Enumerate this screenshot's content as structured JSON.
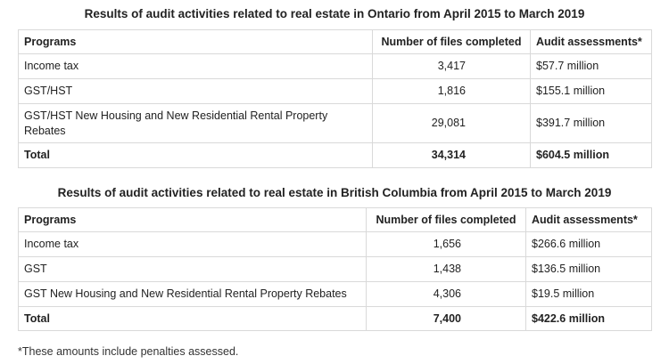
{
  "ontario": {
    "title": "Results of audit activities related to real estate in Ontario from April 2015 to March 2019",
    "headers": [
      "Programs",
      "Number of files completed",
      "Audit assessments*"
    ],
    "rows": [
      [
        "Income tax",
        "3,417",
        "$57.7 million"
      ],
      [
        "GST/HST",
        "1,816",
        "$155.1 million"
      ],
      [
        "GST/HST New Housing and New Residential Rental Property Rebates",
        "29,081",
        "$391.7 million"
      ]
    ],
    "total": [
      "Total",
      "34,314",
      "$604.5 million"
    ]
  },
  "bc": {
    "title": "Results of audit activities related to real estate in British Columbia from April 2015 to March 2019",
    "headers": [
      "Programs",
      "Number of files completed",
      "Audit assessments*"
    ],
    "rows": [
      [
        "Income tax",
        "1,656",
        "$266.6 million"
      ],
      [
        "GST",
        "1,438",
        "$136.5 million"
      ],
      [
        "GST New Housing and New Residential Rental Property Rebates",
        "4,306",
        "$19.5 million"
      ]
    ],
    "total": [
      "Total",
      "7,400",
      "$422.6 million"
    ]
  },
  "footnote": "*These amounts include penalties assessed."
}
